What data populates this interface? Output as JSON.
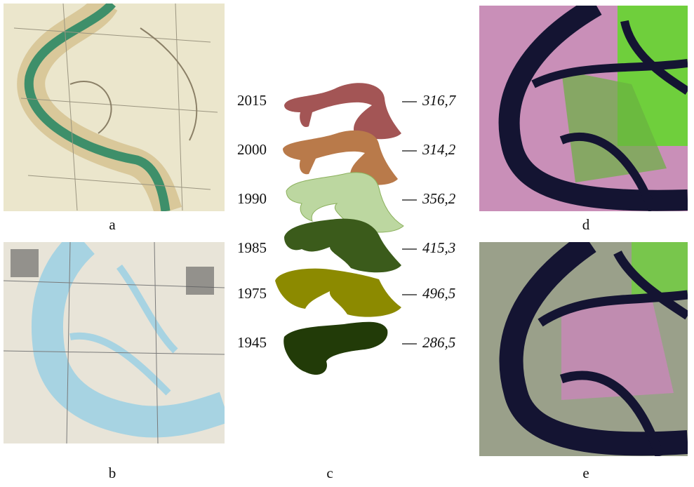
{
  "panels": {
    "a": "a",
    "b": "b",
    "c": "c",
    "d": "d",
    "e": "e"
  },
  "rows": [
    {
      "year": "2015",
      "value": "316,7"
    },
    {
      "year": "2000",
      "value": "314,2"
    },
    {
      "year": "1990",
      "value": "356,2"
    },
    {
      "year": "1985",
      "value": "415,3"
    },
    {
      "year": "1975",
      "value": "496,5"
    },
    {
      "year": "1945",
      "value": "286,5"
    }
  ]
}
